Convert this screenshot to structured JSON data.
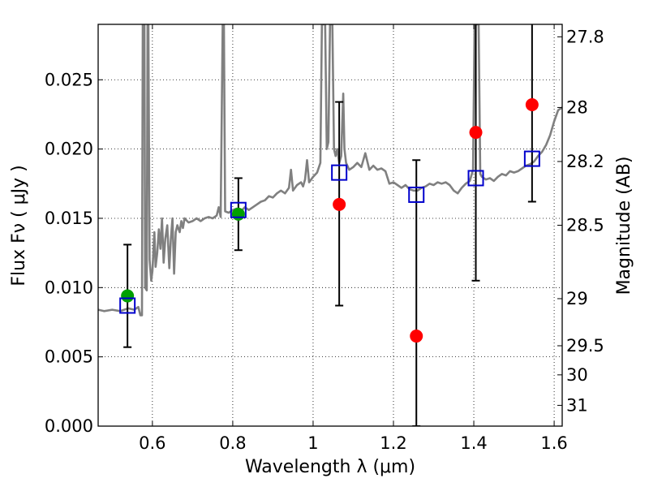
{
  "chart_data": {
    "type": "scatter",
    "xlabel": "Wavelength  λ (μm)",
    "ylabel": "Flux  Fν  ( μJy )",
    "ylabel_right": "Magnitude (AB)",
    "xlim": [
      0.465,
      1.62
    ],
    "ylim": [
      0.0,
      0.029
    ],
    "grid": true,
    "x_ticks": [
      {
        "value": 0.6,
        "label": "0.6"
      },
      {
        "value": 0.8,
        "label": "0.8"
      },
      {
        "value": 1.0,
        "label": "1"
      },
      {
        "value": 1.2,
        "label": "1.2"
      },
      {
        "value": 1.4,
        "label": "1.4"
      },
      {
        "value": 1.6,
        "label": "1.6"
      }
    ],
    "y_ticks": [
      {
        "value": 0.0,
        "label": "0.000"
      },
      {
        "value": 0.005,
        "label": "0.005"
      },
      {
        "value": 0.01,
        "label": "0.010"
      },
      {
        "value": 0.015,
        "label": "0.015"
      },
      {
        "value": 0.02,
        "label": "0.020"
      },
      {
        "value": 0.025,
        "label": "0.025"
      }
    ],
    "right_ticks": [
      {
        "flux": 0.0281,
        "label": "27.8"
      },
      {
        "flux": 0.023,
        "label": "28"
      },
      {
        "flux": 0.0191,
        "label": "28.2"
      },
      {
        "flux": 0.0145,
        "label": "28.5"
      },
      {
        "flux": 0.0092,
        "label": "29"
      },
      {
        "flux": 0.0058,
        "label": "29.5"
      },
      {
        "flux": 0.0037,
        "label": "30"
      },
      {
        "flux": 0.0015,
        "label": "31"
      }
    ],
    "spectrum": {
      "name": "model spectrum",
      "color": "#808080",
      "points": [
        [
          0.465,
          0.0084
        ],
        [
          0.48,
          0.0083
        ],
        [
          0.5,
          0.0084
        ],
        [
          0.52,
          0.0083
        ],
        [
          0.54,
          0.0085
        ],
        [
          0.555,
          0.0084
        ],
        [
          0.565,
          0.0086
        ],
        [
          0.57,
          0.008
        ],
        [
          0.574,
          0.008
        ],
        [
          0.576,
          0.029
        ],
        [
          0.58,
          0.029
        ],
        [
          0.582,
          0.01
        ],
        [
          0.586,
          0.0098
        ],
        [
          0.588,
          0.029
        ],
        [
          0.59,
          0.029
        ],
        [
          0.593,
          0.012
        ],
        [
          0.597,
          0.0105
        ],
        [
          0.6,
          0.0112
        ],
        [
          0.605,
          0.014
        ],
        [
          0.608,
          0.0115
        ],
        [
          0.612,
          0.0125
        ],
        [
          0.616,
          0.0142
        ],
        [
          0.62,
          0.0128
        ],
        [
          0.624,
          0.015
        ],
        [
          0.628,
          0.0118
        ],
        [
          0.632,
          0.0135
        ],
        [
          0.637,
          0.0145
        ],
        [
          0.642,
          0.0114
        ],
        [
          0.646,
          0.0135
        ],
        [
          0.65,
          0.015
        ],
        [
          0.654,
          0.011
        ],
        [
          0.658,
          0.014
        ],
        [
          0.662,
          0.0145
        ],
        [
          0.668,
          0.014
        ],
        [
          0.672,
          0.0148
        ],
        [
          0.676,
          0.0143
        ],
        [
          0.68,
          0.015
        ],
        [
          0.69,
          0.0147
        ],
        [
          0.7,
          0.0148
        ],
        [
          0.71,
          0.015
        ],
        [
          0.72,
          0.0148
        ],
        [
          0.73,
          0.015
        ],
        [
          0.74,
          0.0151
        ],
        [
          0.75,
          0.015
        ],
        [
          0.76,
          0.0152
        ],
        [
          0.765,
          0.0158
        ],
        [
          0.77,
          0.0151
        ],
        [
          0.775,
          0.029
        ],
        [
          0.778,
          0.029
        ],
        [
          0.781,
          0.0155
        ],
        [
          0.79,
          0.0154
        ],
        [
          0.8,
          0.0156
        ],
        [
          0.81,
          0.0157
        ],
        [
          0.82,
          0.0155
        ],
        [
          0.83,
          0.0158
        ],
        [
          0.84,
          0.0156
        ],
        [
          0.85,
          0.0158
        ],
        [
          0.86,
          0.016
        ],
        [
          0.87,
          0.0162
        ],
        [
          0.88,
          0.0163
        ],
        [
          0.89,
          0.0166
        ],
        [
          0.9,
          0.0165
        ],
        [
          0.91,
          0.0168
        ],
        [
          0.92,
          0.017
        ],
        [
          0.93,
          0.0168
        ],
        [
          0.94,
          0.0172
        ],
        [
          0.945,
          0.0185
        ],
        [
          0.95,
          0.017
        ],
        [
          0.96,
          0.0174
        ],
        [
          0.97,
          0.0176
        ],
        [
          0.975,
          0.0173
        ],
        [
          0.98,
          0.0178
        ],
        [
          0.985,
          0.0192
        ],
        [
          0.99,
          0.0176
        ],
        [
          1.0,
          0.018
        ],
        [
          1.01,
          0.0183
        ],
        [
          1.018,
          0.019
        ],
        [
          1.022,
          0.029
        ],
        [
          1.03,
          0.029
        ],
        [
          1.034,
          0.02
        ],
        [
          1.038,
          0.0205
        ],
        [
          1.042,
          0.029
        ],
        [
          1.048,
          0.029
        ],
        [
          1.052,
          0.02
        ],
        [
          1.056,
          0.0195
        ],
        [
          1.06,
          0.02
        ],
        [
          1.065,
          0.019
        ],
        [
          1.07,
          0.0195
        ],
        [
          1.075,
          0.024
        ],
        [
          1.078,
          0.02
        ],
        [
          1.082,
          0.019
        ],
        [
          1.09,
          0.0185
        ],
        [
          1.1,
          0.0187
        ],
        [
          1.11,
          0.019
        ],
        [
          1.12,
          0.0187
        ],
        [
          1.13,
          0.0197
        ],
        [
          1.14,
          0.0185
        ],
        [
          1.15,
          0.0188
        ],
        [
          1.16,
          0.0185
        ],
        [
          1.17,
          0.0186
        ],
        [
          1.18,
          0.0184
        ],
        [
          1.19,
          0.0175
        ],
        [
          1.2,
          0.0176
        ],
        [
          1.21,
          0.0174
        ],
        [
          1.22,
          0.0172
        ],
        [
          1.23,
          0.0174
        ],
        [
          1.24,
          0.0171
        ],
        [
          1.25,
          0.017
        ],
        [
          1.26,
          0.017
        ],
        [
          1.27,
          0.0172
        ],
        [
          1.28,
          0.0173
        ],
        [
          1.29,
          0.0175
        ],
        [
          1.3,
          0.0174
        ],
        [
          1.31,
          0.0176
        ],
        [
          1.32,
          0.0175
        ],
        [
          1.33,
          0.0176
        ],
        [
          1.34,
          0.0174
        ],
        [
          1.35,
          0.017
        ],
        [
          1.36,
          0.0168
        ],
        [
          1.37,
          0.0172
        ],
        [
          1.38,
          0.0175
        ],
        [
          1.39,
          0.0177
        ],
        [
          1.398,
          0.0185
        ],
        [
          1.402,
          0.029
        ],
        [
          1.412,
          0.029
        ],
        [
          1.416,
          0.0182
        ],
        [
          1.42,
          0.018
        ],
        [
          1.43,
          0.0178
        ],
        [
          1.44,
          0.0179
        ],
        [
          1.45,
          0.0177
        ],
        [
          1.46,
          0.018
        ],
        [
          1.47,
          0.0182
        ],
        [
          1.48,
          0.0181
        ],
        [
          1.49,
          0.0184
        ],
        [
          1.5,
          0.0183
        ],
        [
          1.51,
          0.0184
        ],
        [
          1.52,
          0.0186
        ],
        [
          1.53,
          0.0188
        ],
        [
          1.54,
          0.0189
        ],
        [
          1.55,
          0.0191
        ],
        [
          1.56,
          0.0195
        ],
        [
          1.57,
          0.0198
        ],
        [
          1.58,
          0.0203
        ],
        [
          1.59,
          0.021
        ],
        [
          1.6,
          0.022
        ],
        [
          1.61,
          0.0228
        ],
        [
          1.62,
          0.023
        ]
      ]
    },
    "observed": {
      "name": "observed flux",
      "points": [
        {
          "x": 0.538,
          "y": 0.0094,
          "err_low": 0.0057,
          "err_high": 0.0131,
          "color": "#00a000"
        },
        {
          "x": 0.814,
          "y": 0.0153,
          "err_low": 0.0127,
          "err_high": 0.0179,
          "color": "#00a000"
        },
        {
          "x": 1.065,
          "y": 0.016,
          "err_low": 0.0087,
          "err_high": 0.0234,
          "color": "#ff0000"
        },
        {
          "x": 1.257,
          "y": 0.0065,
          "err_low": 0.0,
          "err_high": 0.0192,
          "color": "#ff0000"
        },
        {
          "x": 1.405,
          "y": 0.0212,
          "err_low": 0.0105,
          "err_high": 0.029,
          "color": "#ff0000"
        },
        {
          "x": 1.545,
          "y": 0.0232,
          "err_low": 0.0162,
          "err_high": 0.029,
          "color": "#ff0000"
        }
      ]
    },
    "model_bands": {
      "name": "model band flux",
      "color": "#0000cc",
      "points": [
        {
          "x": 0.538,
          "y": 0.0087
        },
        {
          "x": 0.814,
          "y": 0.0156
        },
        {
          "x": 1.065,
          "y": 0.0183
        },
        {
          "x": 1.257,
          "y": 0.0167
        },
        {
          "x": 1.405,
          "y": 0.0179
        },
        {
          "x": 1.545,
          "y": 0.0193
        }
      ]
    }
  }
}
